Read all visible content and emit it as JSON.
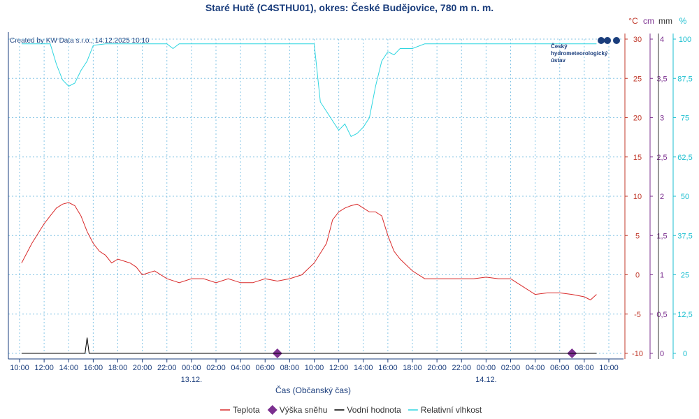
{
  "title": "Staré Hutě (C4STHU01), okres: České Budějovice, 780 m n. m.",
  "credit": "Created by KW Data s.r.o., 14.12.2025 10:10",
  "logo": {
    "lines": [
      "Český",
      "hydrometeorologický",
      "ústav"
    ]
  },
  "colors": {
    "temperature": "#d92b2b",
    "snow": "#7b2f8f",
    "water": "#000000",
    "humidity": "#2fd6e0",
    "axis_title": "#1a3d7c",
    "grid": "#87c6e6",
    "temp_axis": "#c0392b",
    "snow_axis": "#7b2f8f",
    "humidity_axis": "#1bbfd0",
    "logo_dark": "#1a3d7c"
  },
  "chart_data": {
    "type": "line",
    "title": "Staré Hutě (C4STHU01), okres: České Budějovice, 780 m n. m.",
    "xlabel": "Čas (Občanský čas)",
    "x_tick_labels": [
      "10:00",
      "12:00",
      "14:00",
      "16:00",
      "18:00",
      "20:00",
      "22:00",
      "00:00",
      "02:00",
      "04:00",
      "06:00",
      "08:00",
      "10:00",
      "12:00",
      "14:00",
      "16:00",
      "18:00",
      "20:00",
      "22:00",
      "00:00",
      "02:00",
      "04:00",
      "06:00",
      "08:00",
      "10:00"
    ],
    "date_labels": [
      {
        "label": "13.12.",
        "at_tick": 7
      },
      {
        "label": "14.12.",
        "at_tick": 19
      }
    ],
    "x_range": [
      "2025-12-12 10:00",
      "2025-12-14 10:00"
    ],
    "axes": [
      {
        "unit": "°C",
        "ticks": [
          "30",
          "25",
          "20",
          "15",
          "10",
          "5",
          "0",
          "-5",
          "-10"
        ],
        "range": [
          -10,
          30
        ]
      },
      {
        "unit": "cm",
        "ticks": [
          "4",
          "3,5",
          "3",
          "2,5",
          "2",
          "1,5",
          "1",
          "0,5",
          "0"
        ],
        "range": [
          0,
          4
        ]
      },
      {
        "unit": "mm",
        "ticks": [],
        "range": [
          0,
          4
        ]
      },
      {
        "unit": "%",
        "ticks": [
          "100",
          "87,5",
          "75",
          "62,5",
          "50",
          "37,5",
          "25",
          "12,5",
          "0"
        ],
        "range": [
          0,
          100
        ]
      }
    ],
    "grid": true,
    "legend_position": "bottom",
    "series": [
      {
        "name": "Teplota",
        "axis": "°C",
        "style": "line",
        "points": [
          [
            "2025-12-12 10:10",
            1.5
          ],
          [
            "2025-12-12 11:00",
            4.0
          ],
          [
            "2025-12-12 12:00",
            6.5
          ],
          [
            "2025-12-12 12:30",
            7.5
          ],
          [
            "2025-12-12 13:00",
            8.5
          ],
          [
            "2025-12-12 13:30",
            9.0
          ],
          [
            "2025-12-12 14:00",
            9.2
          ],
          [
            "2025-12-12 14:30",
            8.8
          ],
          [
            "2025-12-12 15:00",
            7.5
          ],
          [
            "2025-12-12 15:30",
            5.5
          ],
          [
            "2025-12-12 16:00",
            4.0
          ],
          [
            "2025-12-12 16:30",
            3.0
          ],
          [
            "2025-12-12 17:00",
            2.5
          ],
          [
            "2025-12-12 17:30",
            1.5
          ],
          [
            "2025-12-12 18:00",
            2.0
          ],
          [
            "2025-12-12 19:00",
            1.5
          ],
          [
            "2025-12-12 19:30",
            1.0
          ],
          [
            "2025-12-12 20:00",
            0.0
          ],
          [
            "2025-12-12 21:00",
            0.5
          ],
          [
            "2025-12-12 22:00",
            -0.5
          ],
          [
            "2025-12-12 23:00",
            -1.0
          ],
          [
            "2025-12-13 00:00",
            -0.5
          ],
          [
            "2025-12-13 01:00",
            -0.5
          ],
          [
            "2025-12-13 02:00",
            -1.0
          ],
          [
            "2025-12-13 03:00",
            -0.5
          ],
          [
            "2025-12-13 04:00",
            -1.0
          ],
          [
            "2025-12-13 05:00",
            -1.0
          ],
          [
            "2025-12-13 06:00",
            -0.5
          ],
          [
            "2025-12-13 07:00",
            -0.8
          ],
          [
            "2025-12-13 08:00",
            -0.5
          ],
          [
            "2025-12-13 09:00",
            0.0
          ],
          [
            "2025-12-13 10:00",
            1.5
          ],
          [
            "2025-12-13 11:00",
            4.0
          ],
          [
            "2025-12-13 11:30",
            7.0
          ],
          [
            "2025-12-13 12:00",
            8.0
          ],
          [
            "2025-12-13 12:30",
            8.5
          ],
          [
            "2025-12-13 13:00",
            8.8
          ],
          [
            "2025-12-13 13:30",
            9.0
          ],
          [
            "2025-12-13 14:00",
            8.5
          ],
          [
            "2025-12-13 14:30",
            8.0
          ],
          [
            "2025-12-13 15:00",
            8.0
          ],
          [
            "2025-12-13 15:30",
            7.5
          ],
          [
            "2025-12-13 16:00",
            5.0
          ],
          [
            "2025-12-13 16:30",
            3.0
          ],
          [
            "2025-12-13 17:00",
            2.0
          ],
          [
            "2025-12-13 18:00",
            0.5
          ],
          [
            "2025-12-13 19:00",
            -0.5
          ],
          [
            "2025-12-13 20:00",
            -0.5
          ],
          [
            "2025-12-13 21:00",
            -0.5
          ],
          [
            "2025-12-13 22:00",
            -0.5
          ],
          [
            "2025-12-13 23:00",
            -0.5
          ],
          [
            "2025-12-14 00:00",
            -0.3
          ],
          [
            "2025-12-14 01:00",
            -0.5
          ],
          [
            "2025-12-14 02:00",
            -0.5
          ],
          [
            "2025-12-14 02:30",
            -1.0
          ],
          [
            "2025-12-14 03:00",
            -1.5
          ],
          [
            "2025-12-14 04:00",
            -2.5
          ],
          [
            "2025-12-14 05:00",
            -2.3
          ],
          [
            "2025-12-14 06:00",
            -2.3
          ],
          [
            "2025-12-14 07:00",
            -2.5
          ],
          [
            "2025-12-14 08:00",
            -2.8
          ],
          [
            "2025-12-14 08:30",
            -3.2
          ],
          [
            "2025-12-14 09:00",
            -2.5
          ]
        ]
      },
      {
        "name": "Výška sněhu",
        "axis": "cm",
        "style": "marker",
        "points": [
          [
            "2025-12-13 07:00",
            0
          ],
          [
            "2025-12-14 07:00",
            0
          ]
        ]
      },
      {
        "name": "Vodní hodnota",
        "axis": "mm",
        "style": "line",
        "points": [
          [
            "2025-12-12 10:10",
            0
          ],
          [
            "2025-12-12 15:20",
            0
          ],
          [
            "2025-12-12 15:30",
            0.2
          ],
          [
            "2025-12-12 15:40",
            0
          ],
          [
            "2025-12-14 09:00",
            0
          ]
        ]
      },
      {
        "name": "Relativní vlhkost",
        "axis": "%",
        "style": "line",
        "points": [
          [
            "2025-12-12 10:10",
            98.5
          ],
          [
            "2025-12-12 12:30",
            98.5
          ],
          [
            "2025-12-12 13:00",
            92
          ],
          [
            "2025-12-12 13:30",
            87
          ],
          [
            "2025-12-12 14:00",
            85
          ],
          [
            "2025-12-12 14:30",
            86
          ],
          [
            "2025-12-12 15:00",
            90
          ],
          [
            "2025-12-12 15:30",
            93
          ],
          [
            "2025-12-12 16:00",
            98
          ],
          [
            "2025-12-12 17:00",
            98.5
          ],
          [
            "2025-12-12 18:00",
            98.5
          ],
          [
            "2025-12-12 22:00",
            98.5
          ],
          [
            "2025-12-12 22:30",
            97
          ],
          [
            "2025-12-12 23:00",
            98.5
          ],
          [
            "2025-12-13 10:00",
            98.5
          ],
          [
            "2025-12-13 10:30",
            80
          ],
          [
            "2025-12-13 11:00",
            77
          ],
          [
            "2025-12-13 11:30",
            74
          ],
          [
            "2025-12-13 12:00",
            71
          ],
          [
            "2025-12-13 12:30",
            73
          ],
          [
            "2025-12-13 13:00",
            69
          ],
          [
            "2025-12-13 13:30",
            70
          ],
          [
            "2025-12-13 14:00",
            72
          ],
          [
            "2025-12-13 14:30",
            75
          ],
          [
            "2025-12-13 15:00",
            85
          ],
          [
            "2025-12-13 15:30",
            93
          ],
          [
            "2025-12-13 16:00",
            96
          ],
          [
            "2025-12-13 16:30",
            95
          ],
          [
            "2025-12-13 17:00",
            97
          ],
          [
            "2025-12-13 18:00",
            97
          ],
          [
            "2025-12-13 19:00",
            98.5
          ],
          [
            "2025-12-14 09:00",
            98.5
          ]
        ]
      }
    ]
  },
  "legend": [
    {
      "name": "Teplota",
      "symbol": "line",
      "color": "#d92b2b"
    },
    {
      "name": "Výška sněhu",
      "symbol": "diamond",
      "color": "#7b2f8f"
    },
    {
      "name": "Vodní hodnota",
      "symbol": "line",
      "color": "#000000"
    },
    {
      "name": "Relativní vlhkost",
      "symbol": "line",
      "color": "#2fd6e0"
    }
  ]
}
